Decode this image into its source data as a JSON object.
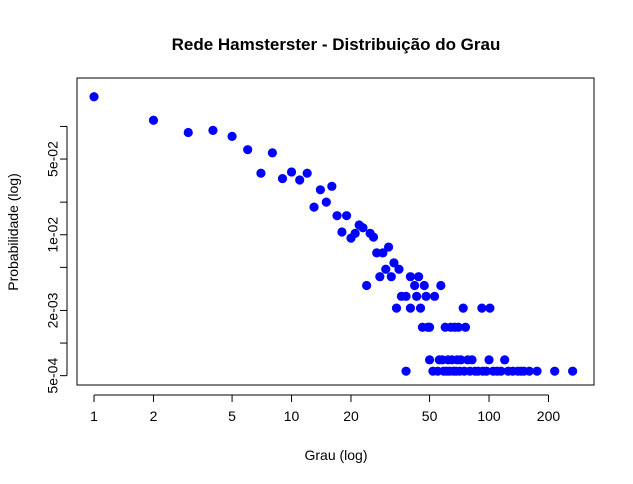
{
  "chart_data": {
    "type": "scatter",
    "title": "Rede Hamsterster - Distribuição do Grau",
    "xlabel": "Grau (log)",
    "ylabel": "Probabilidade (log)",
    "x_scale": "log",
    "y_scale": "log",
    "xlim": [
      0.82,
      340
    ],
    "ylim": [
      0.00041,
      0.28
    ],
    "grid": false,
    "legend": "none",
    "point_color": "#0000ff",
    "x_ticks": [
      {
        "value": 1,
        "label": "1"
      },
      {
        "value": 2,
        "label": "2"
      },
      {
        "value": 5,
        "label": "5"
      },
      {
        "value": 10,
        "label": "10"
      },
      {
        "value": 20,
        "label": "20"
      },
      {
        "value": 50,
        "label": "50"
      },
      {
        "value": 100,
        "label": "100"
      },
      {
        "value": 200,
        "label": "200"
      }
    ],
    "y_ticks": [
      {
        "value": 0.0005,
        "label": "5e-04"
      },
      {
        "value": 0.001,
        "label": ""
      },
      {
        "value": 0.002,
        "label": "2e-03"
      },
      {
        "value": 0.005,
        "label": ""
      },
      {
        "value": 0.01,
        "label": "1e-02"
      },
      {
        "value": 0.02,
        "label": ""
      },
      {
        "value": 0.05,
        "label": "5e-02"
      },
      {
        "value": 0.1,
        "label": ""
      }
    ],
    "points": [
      [
        1,
        0.188
      ],
      [
        2,
        0.114
      ],
      [
        3,
        0.088
      ],
      [
        4,
        0.092
      ],
      [
        5,
        0.081
      ],
      [
        6,
        0.061
      ],
      [
        7,
        0.037
      ],
      [
        8,
        0.057
      ],
      [
        9,
        0.033
      ],
      [
        10,
        0.038
      ],
      [
        11,
        0.032
      ],
      [
        12,
        0.037
      ],
      [
        13,
        0.018
      ],
      [
        14,
        0.026
      ],
      [
        15,
        0.02
      ],
      [
        16,
        0.028
      ],
      [
        17,
        0.015
      ],
      [
        18,
        0.0106
      ],
      [
        19,
        0.015
      ],
      [
        20,
        0.0093
      ],
      [
        21,
        0.0103
      ],
      [
        22,
        0.0123
      ],
      [
        23,
        0.0116
      ],
      [
        24,
        0.0034
      ],
      [
        25,
        0.0103
      ],
      [
        26,
        0.0095
      ],
      [
        27,
        0.0068
      ],
      [
        28,
        0.0041
      ],
      [
        29,
        0.0068
      ],
      [
        30,
        0.0048
      ],
      [
        31,
        0.0077
      ],
      [
        32,
        0.0041
      ],
      [
        33,
        0.0055
      ],
      [
        34,
        0.0021
      ],
      [
        35,
        0.0048
      ],
      [
        36,
        0.0027
      ],
      [
        38,
        0.00055
      ],
      [
        38,
        0.0027
      ],
      [
        40,
        0.0041
      ],
      [
        40,
        0.0021
      ],
      [
        42,
        0.0034
      ],
      [
        43,
        0.0027
      ],
      [
        44,
        0.0041
      ],
      [
        45,
        0.0021
      ],
      [
        46,
        0.0014
      ],
      [
        47,
        0.0034
      ],
      [
        48,
        0.0027
      ],
      [
        49,
        0.0014
      ],
      [
        50,
        0.0014
      ],
      [
        50,
        0.0007
      ],
      [
        52,
        0.00055
      ],
      [
        53,
        0.0027
      ],
      [
        55,
        0.00055
      ],
      [
        56,
        0.0007
      ],
      [
        57,
        0.0034
      ],
      [
        58,
        0.0007
      ],
      [
        59,
        0.00055
      ],
      [
        60,
        0.0014
      ],
      [
        61,
        0.00055
      ],
      [
        62,
        0.0007
      ],
      [
        63,
        0.00055
      ],
      [
        64,
        0.0014
      ],
      [
        65,
        0.0007
      ],
      [
        66,
        0.00055
      ],
      [
        67,
        0.0014
      ],
      [
        68,
        0.00055
      ],
      [
        69,
        0.0007
      ],
      [
        70,
        0.0014
      ],
      [
        71,
        0.00055
      ],
      [
        72,
        0.0007
      ],
      [
        74,
        0.0021
      ],
      [
        75,
        0.00055
      ],
      [
        76,
        0.0014
      ],
      [
        78,
        0.0007
      ],
      [
        80,
        0.00055
      ],
      [
        82,
        0.0007
      ],
      [
        85,
        0.00055
      ],
      [
        88,
        0.00055
      ],
      [
        92,
        0.0021
      ],
      [
        93,
        0.00055
      ],
      [
        97,
        0.00055
      ],
      [
        100,
        0.0007
      ],
      [
        101,
        0.0021
      ],
      [
        105,
        0.00055
      ],
      [
        110,
        0.00055
      ],
      [
        115,
        0.00055
      ],
      [
        120,
        0.0007
      ],
      [
        125,
        0.00055
      ],
      [
        132,
        0.00055
      ],
      [
        140,
        0.00055
      ],
      [
        145,
        0.00055
      ],
      [
        150,
        0.00055
      ],
      [
        160,
        0.00055
      ],
      [
        175,
        0.00055
      ],
      [
        215,
        0.00055
      ],
      [
        265,
        0.00055
      ]
    ]
  }
}
